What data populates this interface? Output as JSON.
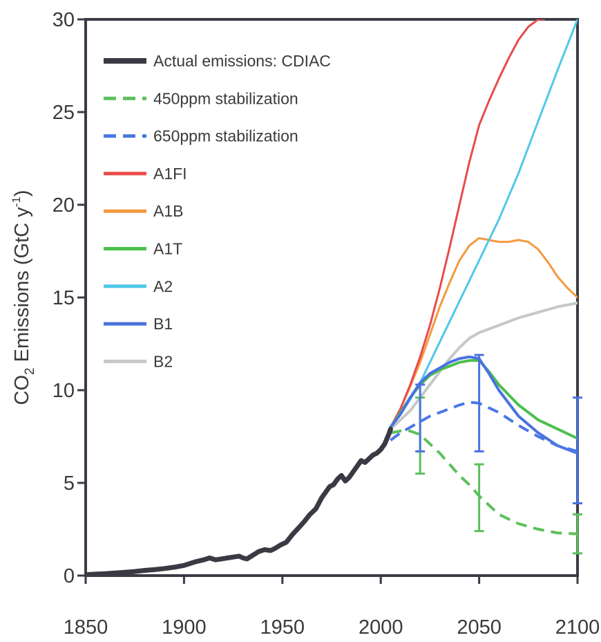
{
  "chart_data": {
    "type": "line",
    "title": "",
    "ylabel_parts": [
      "CO",
      "2",
      " Emissions (GtC y",
      "-1",
      ")"
    ],
    "xlabel": "",
    "xlim": [
      1850,
      2100
    ],
    "ylim": [
      0,
      30
    ],
    "xticks": [
      1850,
      1900,
      1950,
      2000,
      2050,
      2100
    ],
    "yticks": [
      0,
      5,
      10,
      15,
      20,
      25,
      30
    ],
    "grid": false,
    "legend_position": "top-left",
    "series": [
      {
        "name": "Actual emissions: CDIAC",
        "color": "#3a3a44",
        "dash": "solid",
        "width": "thick",
        "x": [
          1850,
          1855,
          1860,
          1865,
          1870,
          1875,
          1880,
          1885,
          1890,
          1895,
          1900,
          1903,
          1906,
          1910,
          1913,
          1916,
          1919,
          1922,
          1925,
          1928,
          1930,
          1932,
          1935,
          1938,
          1941,
          1944,
          1946,
          1949,
          1952,
          1955,
          1958,
          1961,
          1964,
          1967,
          1970,
          1972,
          1974,
          1976,
          1978,
          1980,
          1982,
          1984,
          1986,
          1988,
          1990,
          1992,
          1994,
          1996,
          1998,
          2000,
          2002,
          2004,
          2005
        ],
        "y": [
          0.05,
          0.08,
          0.1,
          0.14,
          0.18,
          0.22,
          0.28,
          0.32,
          0.38,
          0.45,
          0.55,
          0.65,
          0.75,
          0.85,
          0.95,
          0.85,
          0.9,
          0.95,
          1.0,
          1.05,
          0.95,
          0.9,
          1.1,
          1.3,
          1.4,
          1.35,
          1.45,
          1.65,
          1.8,
          2.2,
          2.55,
          2.9,
          3.3,
          3.6,
          4.2,
          4.5,
          4.8,
          4.9,
          5.2,
          5.4,
          5.1,
          5.3,
          5.6,
          5.9,
          6.2,
          6.1,
          6.3,
          6.5,
          6.6,
          6.8,
          7.1,
          7.6,
          7.9
        ]
      },
      {
        "name": "450ppm stabilization",
        "color": "#5cc05c",
        "dash": "dashed",
        "width": "medium",
        "x": [
          2005,
          2010,
          2015,
          2020,
          2025,
          2030,
          2035,
          2040,
          2045,
          2050,
          2060,
          2070,
          2080,
          2090,
          2100
        ],
        "y": [
          7.7,
          7.8,
          7.8,
          7.6,
          7.1,
          6.6,
          6.0,
          5.4,
          4.9,
          4.3,
          3.3,
          2.8,
          2.5,
          2.3,
          2.25
        ]
      },
      {
        "name": "650ppm stabilization",
        "color": "#4a78e6",
        "dash": "dashed",
        "width": "medium",
        "x": [
          2005,
          2010,
          2015,
          2020,
          2025,
          2030,
          2035,
          2040,
          2045,
          2050,
          2060,
          2070,
          2080,
          2090,
          2100
        ],
        "y": [
          7.3,
          7.7,
          8.0,
          8.3,
          8.6,
          8.8,
          9.0,
          9.2,
          9.35,
          9.3,
          8.8,
          8.1,
          7.5,
          7.0,
          6.7
        ]
      },
      {
        "name": "A1FI",
        "color": "#e84b4b",
        "dash": "solid",
        "width": "thin",
        "x": [
          2005,
          2010,
          2015,
          2020,
          2025,
          2030,
          2035,
          2040,
          2045,
          2050,
          2055,
          2060,
          2065,
          2070,
          2075,
          2080,
          2083
        ],
        "y": [
          8.0,
          9.0,
          10.3,
          11.8,
          13.5,
          15.5,
          17.7,
          20.0,
          22.3,
          24.3,
          25.6,
          26.8,
          27.9,
          28.9,
          29.6,
          30.0,
          30.0
        ]
      },
      {
        "name": "A1B",
        "color": "#f39a3e",
        "dash": "solid",
        "width": "thin",
        "x": [
          2005,
          2010,
          2015,
          2020,
          2025,
          2030,
          2035,
          2040,
          2045,
          2050,
          2055,
          2060,
          2065,
          2070,
          2075,
          2080,
          2085,
          2090,
          2095,
          2100
        ],
        "y": [
          8.0,
          9.0,
          10.2,
          11.5,
          13.0,
          14.5,
          15.8,
          17.0,
          17.8,
          18.2,
          18.1,
          18.0,
          18.0,
          18.1,
          18.0,
          17.6,
          16.9,
          16.1,
          15.5,
          15.0
        ]
      },
      {
        "name": "A1T",
        "color": "#4cbf4c",
        "dash": "solid",
        "width": "medium",
        "x": [
          2005,
          2010,
          2015,
          2020,
          2025,
          2030,
          2035,
          2040,
          2045,
          2050,
          2055,
          2060,
          2070,
          2080,
          2090,
          2100
        ],
        "y": [
          8.0,
          8.8,
          9.6,
          10.3,
          10.8,
          11.1,
          11.3,
          11.5,
          11.6,
          11.6,
          11.0,
          10.3,
          9.2,
          8.4,
          7.9,
          7.4
        ]
      },
      {
        "name": "A2",
        "color": "#4fc8e8",
        "dash": "solid",
        "width": "thin",
        "x": [
          2005,
          2010,
          2015,
          2020,
          2025,
          2030,
          2035,
          2040,
          2045,
          2050,
          2060,
          2070,
          2080,
          2090,
          2100
        ],
        "y": [
          8.0,
          8.7,
          9.5,
          10.4,
          11.5,
          12.6,
          13.7,
          14.8,
          15.9,
          17.0,
          19.2,
          21.7,
          24.5,
          27.3,
          30.0
        ]
      },
      {
        "name": "B1",
        "color": "#4a72e0",
        "dash": "solid",
        "width": "medium",
        "x": [
          2005,
          2010,
          2015,
          2020,
          2025,
          2030,
          2035,
          2040,
          2045,
          2050,
          2055,
          2060,
          2070,
          2080,
          2090,
          2100
        ],
        "y": [
          8.0,
          8.7,
          9.6,
          10.4,
          10.9,
          11.2,
          11.5,
          11.7,
          11.8,
          11.7,
          10.9,
          10.0,
          8.6,
          7.7,
          7.0,
          6.6
        ]
      },
      {
        "name": "B2",
        "color": "#c4c9c6",
        "dash": "solid",
        "width": "medium",
        "x": [
          2005,
          2010,
          2015,
          2020,
          2025,
          2030,
          2035,
          2040,
          2045,
          2050,
          2060,
          2070,
          2080,
          2090,
          2100
        ],
        "y": [
          7.9,
          8.4,
          8.9,
          9.6,
          10.3,
          11.0,
          11.7,
          12.3,
          12.8,
          13.1,
          13.5,
          13.9,
          14.2,
          14.5,
          14.7
        ]
      }
    ],
    "error_bars": [
      {
        "color": "#5cc05c",
        "x": 2020,
        "low": 5.5,
        "high": 9.6
      },
      {
        "color": "#4a72e0",
        "x": 2020,
        "low": 6.7,
        "high": 10.3
      },
      {
        "color": "#5cc05c",
        "x": 2050,
        "low": 2.4,
        "high": 6.0
      },
      {
        "color": "#4a72e0",
        "x": 2050,
        "low": 6.7,
        "high": 11.9
      },
      {
        "color": "#5cc05c",
        "x": 2100,
        "low": 1.2,
        "high": 3.3
      },
      {
        "color": "#4a72e0",
        "x": 2100,
        "low": 3.9,
        "high": 9.6
      }
    ]
  }
}
